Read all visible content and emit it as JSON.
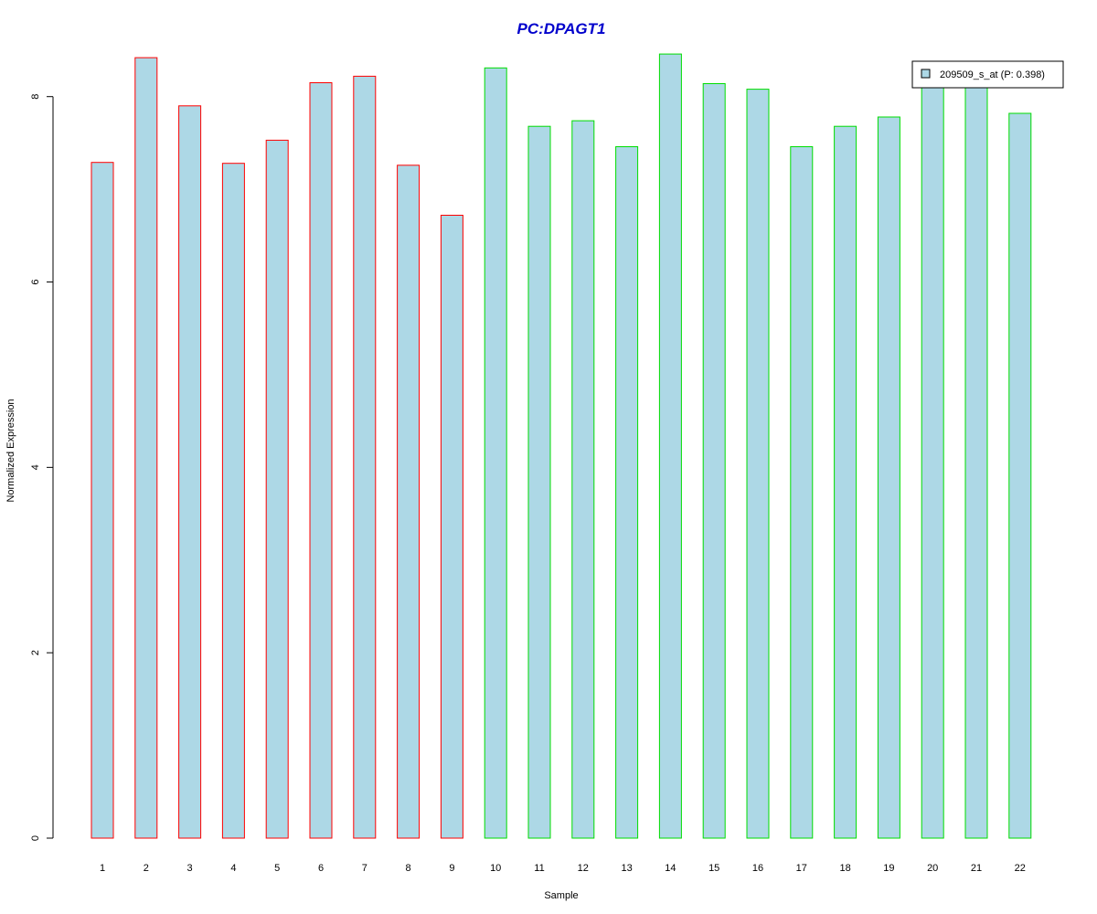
{
  "chart_data": {
    "type": "bar",
    "title": "PC:DPAGT1",
    "xlabel": "Sample",
    "ylabel": "Normalized Expression",
    "categories": [
      "1",
      "2",
      "3",
      "4",
      "5",
      "6",
      "7",
      "8",
      "9",
      "10",
      "11",
      "12",
      "13",
      "14",
      "15",
      "16",
      "17",
      "18",
      "19",
      "20",
      "21",
      "22"
    ],
    "series": [
      {
        "name": "209509_s_at (P: 0.398)",
        "values": [
          7.29,
          8.42,
          7.9,
          7.28,
          7.53,
          8.15,
          8.22,
          7.26,
          6.72,
          8.31,
          7.68,
          7.74,
          7.46,
          8.46,
          8.14,
          8.08,
          7.46,
          7.68,
          7.78,
          8.15,
          8.15,
          7.82
        ]
      }
    ],
    "group_outline_colors": [
      "#ff0000",
      "#ff0000",
      "#ff0000",
      "#ff0000",
      "#ff0000",
      "#ff0000",
      "#ff0000",
      "#ff0000",
      "#ff0000",
      "#00dd00",
      "#00dd00",
      "#00dd00",
      "#00dd00",
      "#00dd00",
      "#00dd00",
      "#00dd00",
      "#00dd00",
      "#00dd00",
      "#00dd00",
      "#00dd00",
      "#00dd00",
      "#00dd00"
    ],
    "ylim": [
      0,
      8.5
    ],
    "yticks": [
      0,
      2,
      4,
      6,
      8
    ],
    "grid": false,
    "legend_position": "top-right",
    "colors": {
      "bar_fill": "#add8e6",
      "title": "#0000cc",
      "axis": "#000000"
    }
  }
}
